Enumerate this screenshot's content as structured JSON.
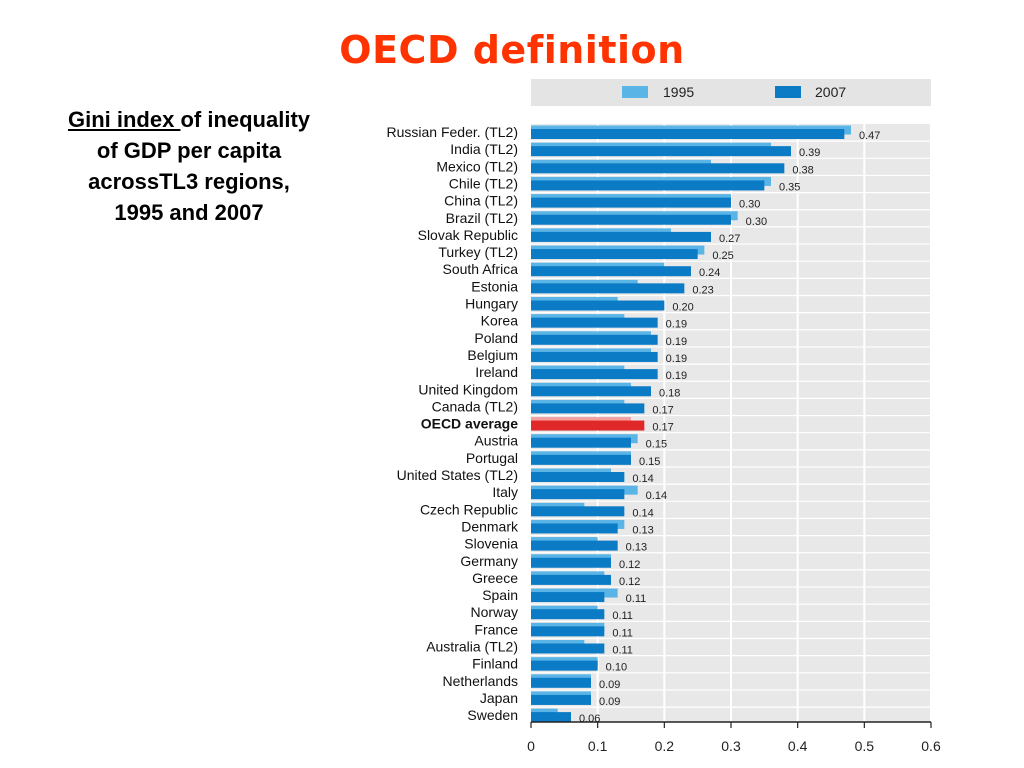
{
  "slide": {
    "title": "OECD definition",
    "subtitle_underlined": "Gini index ",
    "subtitle_line1_rest": "of inequality",
    "subtitle_line2": "of GDP per capita",
    "subtitle_line3": "acrossTL3 regions,",
    "subtitle_line4": "1995 and 2007"
  },
  "chart_data": {
    "type": "bar",
    "orientation": "horizontal",
    "categories": [
      "Russian Feder. (TL2)",
      "India (TL2)",
      "Mexico (TL2)",
      "Chile (TL2)",
      "China (TL2)",
      "Brazil (TL2)",
      "Slovak Republic",
      "Turkey (TL2)",
      "South Africa",
      "Estonia",
      "Hungary",
      "Korea",
      "Poland",
      "Belgium",
      "Ireland",
      "United Kingdom",
      "Canada (TL2)",
      "OECD average",
      "Austria",
      "Portugal",
      "United States (TL2)",
      "Italy",
      "Czech Republic",
      "Denmark",
      "Slovenia",
      "Germany",
      "Greece",
      "Spain",
      "Norway",
      "France",
      "Australia (TL2)",
      "Finland",
      "Netherlands",
      "Japan",
      "Sweden"
    ],
    "series": [
      {
        "name": "1995",
        "values": [
          0.48,
          0.36,
          0.27,
          0.36,
          0.3,
          0.31,
          0.21,
          0.26,
          0.2,
          0.16,
          0.13,
          0.14,
          0.18,
          0.18,
          0.14,
          0.15,
          0.14,
          0.15,
          0.16,
          0.15,
          0.12,
          0.16,
          0.08,
          0.14,
          0.1,
          0.12,
          0.11,
          0.13,
          0.1,
          0.11,
          0.08,
          0.1,
          0.09,
          0.09,
          0.04
        ]
      },
      {
        "name": "2007",
        "values": [
          0.47,
          0.39,
          0.38,
          0.35,
          0.3,
          0.3,
          0.27,
          0.25,
          0.24,
          0.23,
          0.2,
          0.19,
          0.19,
          0.19,
          0.19,
          0.18,
          0.17,
          0.17,
          0.15,
          0.15,
          0.14,
          0.14,
          0.14,
          0.13,
          0.13,
          0.12,
          0.12,
          0.11,
          0.11,
          0.11,
          0.11,
          0.1,
          0.09,
          0.09,
          0.06
        ]
      }
    ],
    "value_labels": [
      "0.47",
      "0.39",
      "0.38",
      "0.35",
      "0.30",
      "0.30",
      "0.27",
      "0.25",
      "0.24",
      "0.23",
      "0.20",
      "0.19",
      "0.19",
      "0.19",
      "0.19",
      "0.18",
      "0.17",
      "0.17",
      "0.15",
      "0.15",
      "0.14",
      "0.14",
      "0.14",
      "0.13",
      "0.13",
      "0.12",
      "0.12",
      "0.11",
      "0.11",
      "0.11",
      "0.11",
      "0.10",
      "0.09",
      "0.09",
      "0.06"
    ],
    "highlight_category": "OECD average",
    "xlim": [
      0,
      0.6
    ],
    "xticks": [
      "0",
      "0.1",
      "0.2",
      "0.3",
      "0.4",
      "0.5",
      "0.6"
    ],
    "grid": true,
    "legend_position": "top",
    "colors": {
      "1995": "#5ab4e6",
      "2007": "#0a7bc4",
      "highlight": "#e02828",
      "plot_bg": "#e8e8e8",
      "legend_bg": "#e4e4e4"
    }
  }
}
